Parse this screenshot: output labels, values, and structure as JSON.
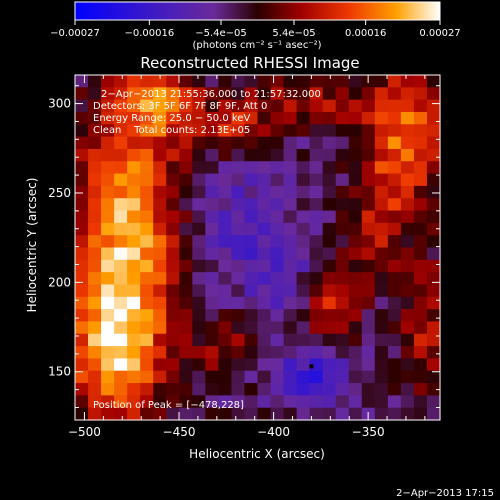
{
  "chart_data": {
    "type": "heatmap",
    "title": "Reconstructed RHESSI Image",
    "xlabel": "Heliocentric X (arcsec)",
    "ylabel": "Heliocentric Y (arcsec)",
    "xlim": [
      -505,
      -312
    ],
    "ylim": [
      123,
      316
    ],
    "x_ticks": [
      -500,
      -450,
      -400,
      -350
    ],
    "y_ticks": [
      150,
      200,
      250,
      300
    ],
    "x_tick_labels": [
      "−500",
      "−450",
      "−400",
      "−350"
    ],
    "y_tick_labels": [
      "150",
      "200",
      "250",
      "300"
    ],
    "colorbar": {
      "min": -0.00027,
      "max": 0.00027,
      "ticks": [
        -0.00027,
        -0.00016,
        -5.4e-05,
        5.4e-05,
        0.00016,
        0.00027
      ],
      "tick_labels": [
        "−0.00027",
        "−0.00016",
        "−5.4e−05",
        "5.4e−05",
        "0.00016",
        "0.00027"
      ],
      "unit": "(photons cm⁻² s⁻¹ asec⁻²)"
    },
    "annotations": [
      "2−Apr−2013 21:55:36.000 to 21:57:32.000",
      "Detectors: 3F 5F 6F 7F 8F 9F, Att 0",
      "Energy Range: 25.0 − 50.0 keV",
      "Clean    Total counts: 2.13E+05"
    ],
    "peak_label": "Position of Peak = [−478,228]",
    "peak": [
      -478,
      228
    ],
    "grid_size": 28,
    "bright_sources": [
      {
        "x": -478,
        "y": 228,
        "sx": 20,
        "sy": 50,
        "value": 0.00025
      },
      {
        "x": -485,
        "y": 160,
        "sx": 18,
        "sy": 28,
        "value": 0.0002
      },
      {
        "x": -460,
        "y": 300,
        "sx": 15,
        "sy": 14,
        "value": 0.00017
      },
      {
        "x": -422,
        "y": 285,
        "sx": 13,
        "sy": 9,
        "value": 0.00013
      },
      {
        "x": -388,
        "y": 300,
        "sx": 24,
        "sy": 9,
        "value": 0.00012
      },
      {
        "x": -330,
        "y": 282,
        "sx": 16,
        "sy": 28,
        "value": 0.0002
      },
      {
        "x": -345,
        "y": 230,
        "sx": 10,
        "sy": 22,
        "value": 0.00011
      },
      {
        "x": -370,
        "y": 192,
        "sx": 10,
        "sy": 16,
        "value": 0.00016
      },
      {
        "x": -320,
        "y": 175,
        "sx": 8,
        "sy": 28,
        "value": 0.00012
      },
      {
        "x": -425,
        "y": 165,
        "sx": 10,
        "sy": 12,
        "value": 0.0001
      }
    ],
    "dark_sources": [
      {
        "x": -380,
        "y": 148,
        "sx": 14,
        "sy": 10,
        "value": -0.00012
      },
      {
        "x": -418,
        "y": 232,
        "sx": 18,
        "sy": 28,
        "value": -7e-05
      },
      {
        "x": -390,
        "y": 205,
        "sx": 16,
        "sy": 16,
        "value": -6e-05
      }
    ]
  },
  "footer": {
    "timestamp": "2−Apr−2013 17:15"
  }
}
